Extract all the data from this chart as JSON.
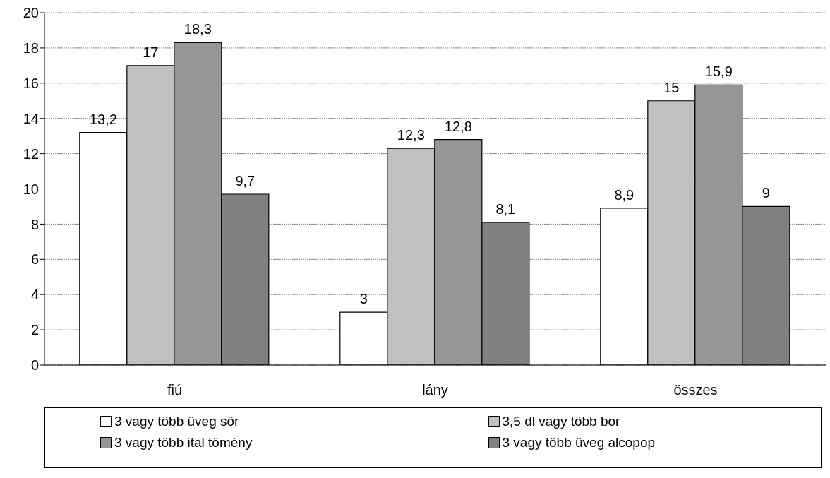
{
  "chart_data": {
    "type": "bar",
    "categories": [
      "fiú",
      "lány",
      "összes"
    ],
    "series": [
      {
        "name": "3 vagy több üveg sör",
        "color": "#ffffff",
        "values": [
          13.2,
          3,
          8.9
        ],
        "value_labels": [
          "13,2",
          "3",
          "8,9"
        ]
      },
      {
        "name": "3,5 dl vagy több bor",
        "color": "#c0c0c0",
        "values": [
          17,
          12.3,
          15
        ],
        "value_labels": [
          "17",
          "12,3",
          "15"
        ]
      },
      {
        "name": "3 vagy több ital tömény",
        "color": "#969696",
        "values": [
          18.3,
          12.8,
          15.9
        ],
        "value_labels": [
          "18,3",
          "12,8",
          "15,9"
        ]
      },
      {
        "name": "3 vagy több üveg alcopop",
        "color": "#808080",
        "values": [
          9.7,
          8.1,
          9
        ],
        "value_labels": [
          "9,7",
          "8,1",
          "9"
        ]
      }
    ],
    "ylim": [
      0,
      20
    ],
    "yticks": [
      0,
      2,
      4,
      6,
      8,
      10,
      12,
      14,
      16,
      18,
      20
    ],
    "grid": "y",
    "legend": "bottom"
  }
}
